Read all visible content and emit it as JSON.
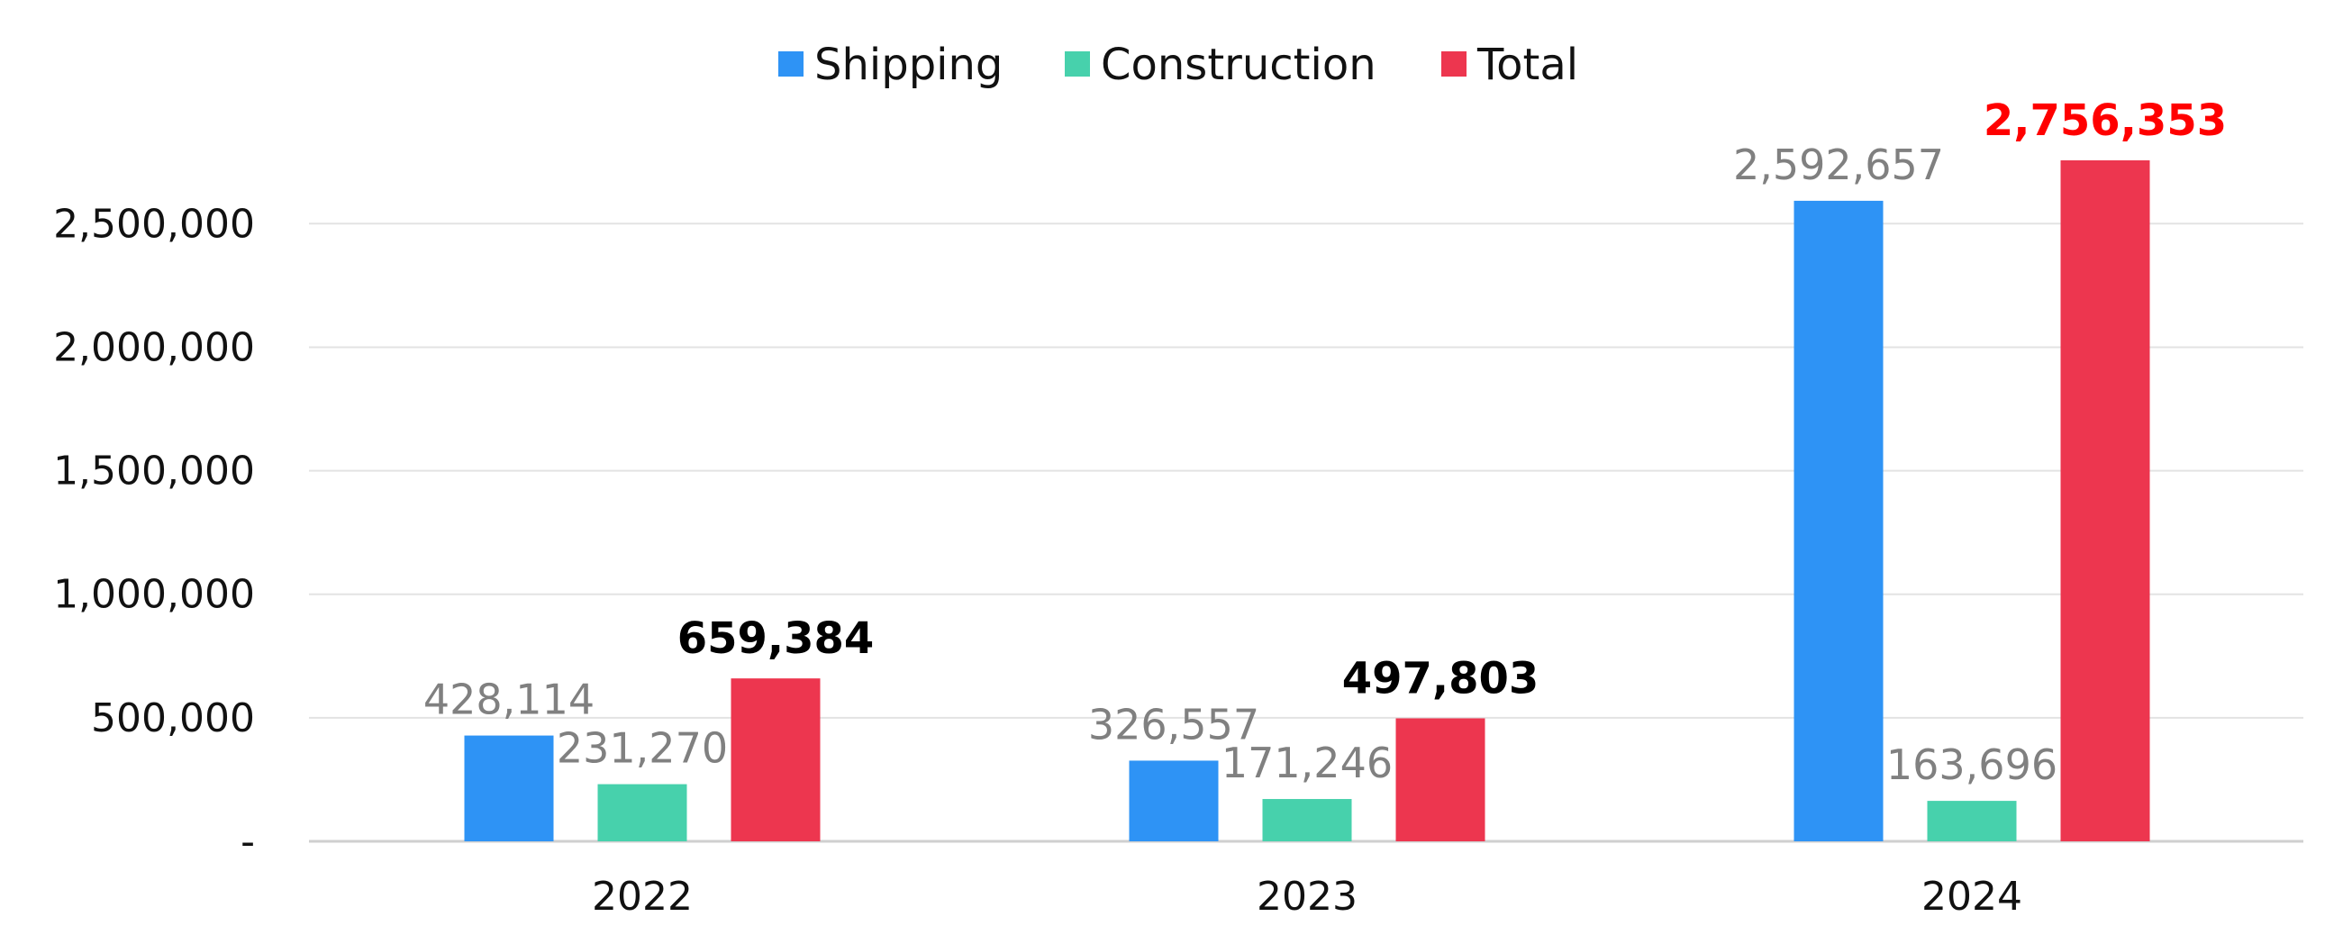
{
  "chart_data": {
    "type": "bar",
    "categories": [
      "2022",
      "2023",
      "2024"
    ],
    "series": [
      {
        "name": "Shipping",
        "color": "#2e93f5",
        "values": [
          428114,
          326557,
          2592657
        ],
        "labels": [
          "428,114",
          "326,557",
          "2,592,657"
        ]
      },
      {
        "name": "Construction",
        "color": "#47d1ac",
        "values": [
          231270,
          171246,
          163696
        ],
        "labels": [
          "231,270",
          "171,246",
          "163,696"
        ]
      },
      {
        "name": "Total",
        "color": "#ed364f",
        "values": [
          659384,
          497803,
          2756353
        ],
        "labels": [
          "659,384",
          "497,803",
          "2,756,353"
        ]
      }
    ],
    "total_label_colors": [
      "#000000",
      "#000000",
      "#ff0000"
    ],
    "ylim": [
      0,
      2756353
    ],
    "yticks": [
      0,
      500000,
      1000000,
      1500000,
      2000000,
      2500000
    ],
    "ytick_labels": [
      "-",
      "500,000",
      "1,000,000",
      "1,500,000",
      "2,000,000",
      "2,500,000"
    ],
    "grid": true,
    "legend_position": "top-center",
    "title": "",
    "xlabel": "",
    "ylabel": ""
  }
}
